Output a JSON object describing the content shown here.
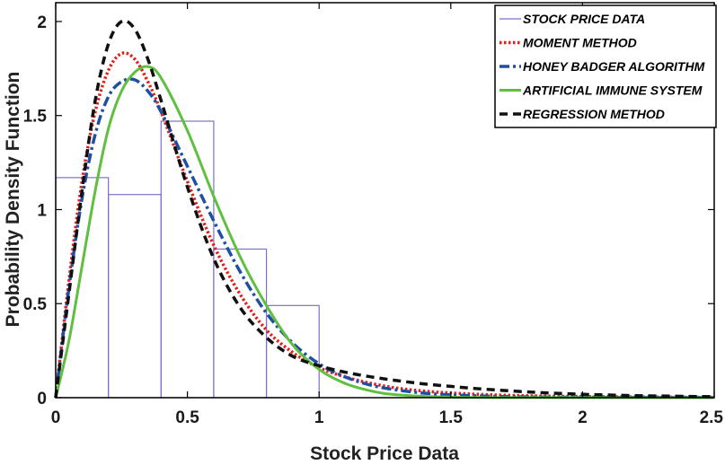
{
  "chart_data": {
    "type": "line",
    "xlabel": "Stock Price Data",
    "ylabel": "Probability Density Function",
    "xlim": [
      0,
      2.5
    ],
    "ylim": [
      0,
      2.1
    ],
    "grid": false,
    "legend_position": "top-right",
    "x_ticks": [
      {
        "value": 0,
        "label": "0"
      },
      {
        "value": 0.5,
        "label": "0.5"
      },
      {
        "value": 1,
        "label": "1"
      },
      {
        "value": 1.5,
        "label": "1.5"
      },
      {
        "value": 2,
        "label": "2"
      },
      {
        "value": 2.5,
        "label": "2.5"
      }
    ],
    "y_ticks": [
      {
        "value": 0,
        "label": "0"
      },
      {
        "value": 0.5,
        "label": "0.5"
      },
      {
        "value": 1,
        "label": "1"
      },
      {
        "value": 1.5,
        "label": "1.5"
      },
      {
        "value": 2,
        "label": "2"
      }
    ],
    "histogram": {
      "name": "STOCK PRICE DATA",
      "color": "#7b72c9",
      "bins": [
        {
          "start": 0.0,
          "end": 0.2,
          "value": 1.17
        },
        {
          "start": 0.2,
          "end": 0.4,
          "value": 1.08
        },
        {
          "start": 0.4,
          "end": 0.6,
          "value": 1.47
        },
        {
          "start": 0.6,
          "end": 0.8,
          "value": 0.79
        },
        {
          "start": 0.8,
          "end": 1.0,
          "value": 0.49
        }
      ]
    },
    "series": [
      {
        "name": "MOMENT METHOD",
        "color": "#e0201c",
        "dash": "2.5,2.5",
        "width": 3.5,
        "points": [
          [
            0,
            0
          ],
          [
            0.05,
            0.62
          ],
          [
            0.1,
            1.15
          ],
          [
            0.15,
            1.52
          ],
          [
            0.2,
            1.74
          ],
          [
            0.25,
            1.83
          ],
          [
            0.3,
            1.8
          ],
          [
            0.35,
            1.68
          ],
          [
            0.4,
            1.52
          ],
          [
            0.5,
            1.15
          ],
          [
            0.6,
            0.81
          ],
          [
            0.7,
            0.55
          ],
          [
            0.8,
            0.36
          ],
          [
            0.9,
            0.24
          ],
          [
            1.0,
            0.16
          ],
          [
            1.1,
            0.11
          ],
          [
            1.2,
            0.075
          ],
          [
            1.3,
            0.05
          ],
          [
            1.4,
            0.035
          ],
          [
            1.5,
            0.025
          ],
          [
            1.7,
            0.013
          ],
          [
            2.0,
            0.006
          ],
          [
            2.5,
            0.002
          ]
        ]
      },
      {
        "name": "HONEY BADGER ALGORITHM",
        "color": "#1f4fa3",
        "dash": "11,4,3,4",
        "width": 3.5,
        "points": [
          [
            0,
            0
          ],
          [
            0.05,
            0.58
          ],
          [
            0.1,
            1.06
          ],
          [
            0.15,
            1.4
          ],
          [
            0.2,
            1.6
          ],
          [
            0.25,
            1.68
          ],
          [
            0.3,
            1.69
          ],
          [
            0.35,
            1.63
          ],
          [
            0.4,
            1.52
          ],
          [
            0.5,
            1.23
          ],
          [
            0.6,
            0.94
          ],
          [
            0.7,
            0.67
          ],
          [
            0.8,
            0.45
          ],
          [
            0.9,
            0.29
          ],
          [
            1.0,
            0.18
          ],
          [
            1.1,
            0.11
          ],
          [
            1.2,
            0.065
          ],
          [
            1.3,
            0.04
          ],
          [
            1.4,
            0.024
          ],
          [
            1.5,
            0.015
          ],
          [
            1.7,
            0.006
          ],
          [
            2.0,
            0.002
          ],
          [
            2.5,
            0.001
          ]
        ]
      },
      {
        "name": "ARTIFICIAL IMMUNE SYSTEM",
        "color": "#5fbf3f",
        "dash": "",
        "width": 3,
        "points": [
          [
            0,
            0
          ],
          [
            0.05,
            0.3
          ],
          [
            0.1,
            0.7
          ],
          [
            0.15,
            1.1
          ],
          [
            0.2,
            1.43
          ],
          [
            0.25,
            1.63
          ],
          [
            0.3,
            1.73
          ],
          [
            0.35,
            1.76
          ],
          [
            0.4,
            1.7
          ],
          [
            0.5,
            1.42
          ],
          [
            0.6,
            1.07
          ],
          [
            0.7,
            0.75
          ],
          [
            0.8,
            0.49
          ],
          [
            0.9,
            0.28
          ],
          [
            1.0,
            0.15
          ],
          [
            1.1,
            0.075
          ],
          [
            1.2,
            0.035
          ],
          [
            1.3,
            0.015
          ],
          [
            1.5,
            0.003
          ],
          [
            1.8,
            0.0005
          ],
          [
            2.5,
            0.0
          ]
        ]
      },
      {
        "name": "REGRESSION METHOD",
        "color": "#111111",
        "dash": "9,6",
        "width": 3.5,
        "points": [
          [
            0,
            0
          ],
          [
            0.05,
            0.55
          ],
          [
            0.1,
            1.1
          ],
          [
            0.15,
            1.58
          ],
          [
            0.2,
            1.88
          ],
          [
            0.25,
            2.0
          ],
          [
            0.3,
            1.96
          ],
          [
            0.35,
            1.8
          ],
          [
            0.4,
            1.58
          ],
          [
            0.5,
            1.12
          ],
          [
            0.6,
            0.74
          ],
          [
            0.7,
            0.48
          ],
          [
            0.8,
            0.32
          ],
          [
            0.9,
            0.22
          ],
          [
            1.0,
            0.17
          ],
          [
            1.1,
            0.135
          ],
          [
            1.2,
            0.11
          ],
          [
            1.3,
            0.09
          ],
          [
            1.4,
            0.073
          ],
          [
            1.5,
            0.06
          ],
          [
            1.6,
            0.048
          ],
          [
            1.8,
            0.03
          ],
          [
            2.0,
            0.018
          ],
          [
            2.2,
            0.011
          ],
          [
            2.5,
            0.005
          ]
        ]
      }
    ]
  }
}
